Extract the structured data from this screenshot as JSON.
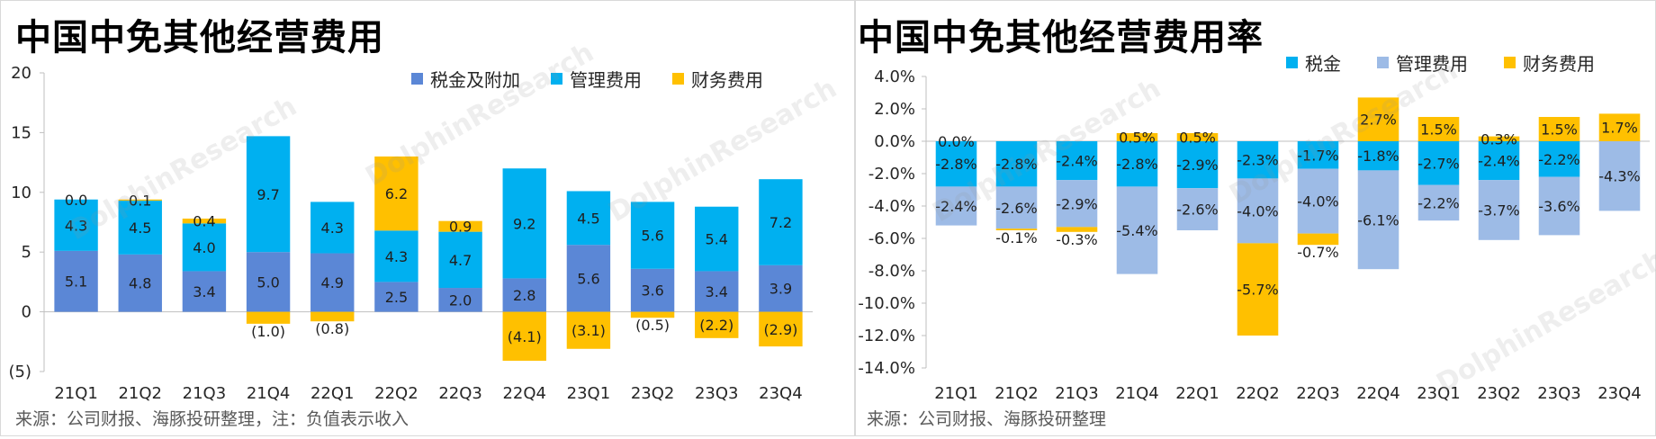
{
  "watermark": "DolphinResearch",
  "watermark_cn": "海豚投研",
  "chart_data": [
    {
      "type": "bar",
      "stacked": true,
      "title": "中国中免其他经营费用",
      "source": "来源：公司财报、海豚投研整理，注：负值表示收入",
      "categories": [
        "21Q1",
        "21Q2",
        "21Q3",
        "21Q4",
        "22Q1",
        "22Q2",
        "22Q3",
        "22Q4",
        "23Q1",
        "23Q2",
        "23Q3",
        "23Q4"
      ],
      "series": [
        {
          "name": "税金及附加",
          "color": "#5b87d6",
          "values": [
            5.1,
            4.8,
            3.4,
            5.0,
            4.9,
            2.5,
            2.0,
            2.8,
            5.6,
            3.6,
            3.4,
            3.9
          ]
        },
        {
          "name": "管理费用",
          "color": "#00b0f0",
          "values": [
            4.3,
            4.5,
            4.0,
            9.7,
            4.3,
            4.3,
            4.7,
            9.2,
            4.5,
            5.6,
            5.4,
            7.2
          ]
        },
        {
          "name": "财务费用",
          "color": "#ffc000",
          "values": [
            0.0,
            0.1,
            0.4,
            -1.0,
            -0.8,
            6.2,
            0.9,
            -4.1,
            -3.1,
            -0.5,
            -2.2,
            -2.9
          ]
        }
      ],
      "labels": {
        "税金及附加": [
          "5.1",
          "4.8",
          "3.4",
          "5.0",
          "4.9",
          "2.5",
          "2.0",
          "2.8",
          "5.6",
          "3.6",
          "3.4",
          "3.9"
        ],
        "管理费用": [
          "4.3",
          "4.5",
          "4.0",
          "9.7",
          "4.3",
          "4.3",
          "4.7",
          "9.2",
          "4.5",
          "5.6",
          "5.4",
          "7.2"
        ],
        "财务费用": [
          "0.0",
          "0.1",
          "0.4",
          "(1.0)",
          "(0.8)",
          "6.2",
          "0.9",
          "(4.1)",
          "(3.1)",
          "(0.5)",
          "(2.2)",
          "(2.9)"
        ]
      },
      "ylim": [
        -5,
        20
      ],
      "yticks": [
        -5,
        0,
        5,
        10,
        15,
        20
      ],
      "ytick_labels": [
        "(5)",
        "0",
        "5",
        "10",
        "15",
        "20"
      ],
      "legend_position": "top-right"
    },
    {
      "type": "bar",
      "stacked": true,
      "title": "中国中免其他经营费用率",
      "source": "来源：公司财报、海豚投研整理",
      "categories": [
        "21Q1",
        "21Q2",
        "21Q3",
        "21Q4",
        "22Q1",
        "22Q2",
        "22Q3",
        "22Q4",
        "23Q1",
        "23Q2",
        "23Q3",
        "23Q4"
      ],
      "series": [
        {
          "name": "税金",
          "color": "#00b0f0",
          "values": [
            -2.8,
            -2.8,
            -2.4,
            -2.8,
            -2.9,
            -2.3,
            -1.7,
            -1.8,
            -2.7,
            -2.4,
            -2.2,
            0.0
          ]
        },
        {
          "name": "管理费用",
          "color": "#9dbbe6",
          "values": [
            -2.4,
            -2.6,
            -2.9,
            -5.4,
            -2.6,
            -4.0,
            -4.0,
            -6.1,
            -2.2,
            -3.7,
            -3.6,
            -4.3
          ]
        },
        {
          "name": "财务费用",
          "color": "#ffc000",
          "values": [
            0.0,
            -0.1,
            -0.3,
            0.5,
            0.5,
            -5.7,
            -0.7,
            2.7,
            1.5,
            0.3,
            1.5,
            1.7
          ]
        }
      ],
      "labels": {
        "税金": [
          "-2.8%",
          "-2.8%",
          "-2.4%",
          "-2.8%",
          "-2.9%",
          "-2.3%",
          "-1.7%",
          "-1.8%",
          "-2.7%",
          "-2.4%",
          "-2.2%",
          ""
        ],
        "管理费用": [
          "-2.4%",
          "-2.6%",
          "-2.9%",
          "-5.4%",
          "-2.6%",
          "-4.0%",
          "-4.0%",
          "-6.1%",
          "-2.2%",
          "-3.7%",
          "-3.6%",
          "-4.3%"
        ],
        "财务费用": [
          "0.0%",
          "-0.1%",
          "-0.3%",
          "0.5%",
          "0.5%",
          "-5.7%",
          "-0.7%",
          "2.7%",
          "1.5%",
          "0.3%",
          "1.5%",
          "1.7%"
        ]
      },
      "ylim": [
        -14,
        4
      ],
      "yticks": [
        -14,
        -12,
        -10,
        -8,
        -6,
        -4,
        -2,
        0,
        2,
        4
      ],
      "ytick_labels": [
        "-14.0%",
        "-12.0%",
        "-10.0%",
        "-8.0%",
        "-6.0%",
        "-4.0%",
        "-2.0%",
        "0.0%",
        "2.0%",
        "4.0%"
      ],
      "legend_position": "top"
    }
  ]
}
